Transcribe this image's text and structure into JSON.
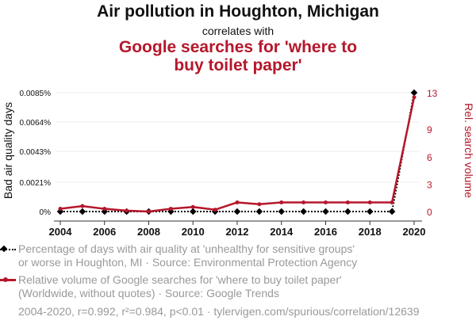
{
  "title": {
    "line1": "Air pollution in Houghton, Michigan",
    "line2": "correlates with",
    "line3": "Google searches for 'where to buy toilet paper'"
  },
  "colors": {
    "series1": "#000000",
    "series2": "#b5172b",
    "legend_text": "#999999",
    "grid": "#eeeeee"
  },
  "chart_data": {
    "type": "line",
    "x": [
      2004,
      2005,
      2006,
      2007,
      2008,
      2009,
      2010,
      2011,
      2012,
      2013,
      2014,
      2015,
      2016,
      2017,
      2018,
      2019,
      2020
    ],
    "xticks": [
      "2004",
      "2006",
      "2008",
      "2010",
      "2012",
      "2014",
      "2016",
      "2018",
      "2020"
    ],
    "left_axis": {
      "label": "Bad air quality days",
      "range": [
        0,
        0.0085
      ],
      "ticks": [
        0,
        0.0021,
        0.0043,
        0.0064,
        0.0085
      ],
      "tick_labels": [
        "0%",
        "0.0021%",
        "0.0043%",
        "0.0064%",
        "0.0085%"
      ]
    },
    "right_axis": {
      "label": "Rel. search volume",
      "range": [
        0,
        13
      ],
      "ticks": [
        0,
        3,
        6,
        9,
        13
      ],
      "tick_labels": [
        "0",
        "3",
        "6",
        "9",
        "13"
      ]
    },
    "series": [
      {
        "name": "Percentage of days with air quality at 'unhealthy for sensitive groups' or worse in Houghton, MI",
        "axis": "left",
        "style": "dotted",
        "values": [
          0,
          0,
          0,
          0,
          0,
          0,
          0,
          0,
          0,
          0,
          0,
          0,
          0,
          0,
          0,
          0,
          0.0085
        ]
      },
      {
        "name": "Relative volume of Google searches for 'where to buy toilet paper'",
        "axis": "right",
        "style": "solid",
        "values": [
          0.3,
          0.6,
          0.3,
          0.1,
          0,
          0.3,
          0.5,
          0.2,
          1,
          0.8,
          1,
          1,
          1,
          1,
          1,
          1,
          12.5
        ]
      }
    ]
  },
  "legend": {
    "item1_line1": "Percentage of days with air quality at 'unhealthy for sensitive groups'",
    "item1_line2": "or worse in Houghton, MI · Source: Environmental Protection Agency",
    "item2_line1": "Relative volume of Google searches for 'where to buy toilet paper'",
    "item2_line2": "(Worldwide, without quotes) · Source: Google Trends"
  },
  "footer": "2004-2020, r=0.992, r²=0.984, p<0.01 · tylervigen.com/spurious/correlation/12639"
}
